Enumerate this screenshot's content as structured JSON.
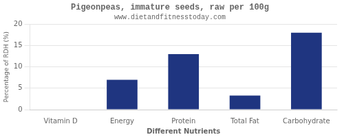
{
  "chart_data": {
    "type": "bar",
    "title": "Pigeonpeas, immature seeds, raw per 100g",
    "subtitle": "www.dietandfitnesstoday.com",
    "xlabel": "Different Nutrients",
    "ylabel": "Percentage of RDH (%)",
    "categories": [
      "Vitamin D",
      "Energy",
      "Protein",
      "Total Fat",
      "Carbohydrate"
    ],
    "values": [
      0,
      7,
      13,
      3.3,
      18
    ],
    "color": "#1f3580",
    "ylim": [
      0,
      20
    ],
    "yticks": [
      0,
      5,
      10,
      15,
      20
    ],
    "grid": true
  }
}
